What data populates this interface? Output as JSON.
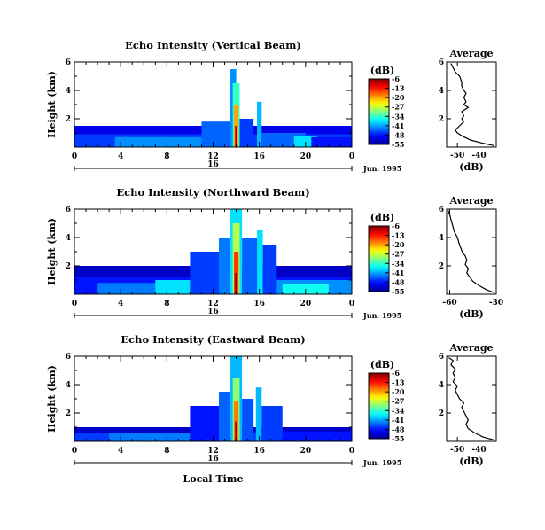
{
  "chart_data": [
    {
      "type": "heatmap",
      "title": "Echo Intensity (Vertical Beam)",
      "ylabel": "Height (km)",
      "xlabel": "",
      "x_ticks": [
        "0",
        "4",
        "8",
        "12",
        "16",
        "20",
        "0"
      ],
      "y_ticks": [
        "6",
        "4",
        "2"
      ],
      "xlim": [
        0,
        24
      ],
      "ylim": [
        0,
        6
      ],
      "date_label": "16",
      "date_suffix": "Jun. 1995",
      "colorbar": {
        "unit": "(dB)",
        "ticks": [
          "-6",
          "-13",
          "-20",
          "-27",
          "-34",
          "-41",
          "-48",
          "-55"
        ],
        "range": [
          -55,
          -6
        ]
      },
      "average": {
        "title": "Average",
        "xlabel": "(dB)",
        "x_ticks": [
          "-50",
          "-40"
        ],
        "y_ticks": [
          "6",
          "4",
          "2"
        ],
        "xlim": [
          -55,
          -32
        ],
        "profile": [
          [
            0.1,
            -33
          ],
          [
            0.3,
            -39
          ],
          [
            0.5,
            -44
          ],
          [
            0.8,
            -48
          ],
          [
            1.0,
            -50
          ],
          [
            1.2,
            -51
          ],
          [
            1.5,
            -49
          ],
          [
            1.8,
            -47
          ],
          [
            2.0,
            -48
          ],
          [
            2.2,
            -47
          ],
          [
            2.5,
            -48
          ],
          [
            2.8,
            -45
          ],
          [
            3.0,
            -47
          ],
          [
            3.2,
            -46
          ],
          [
            3.5,
            -47
          ],
          [
            3.8,
            -46
          ],
          [
            4.0,
            -47
          ],
          [
            4.3,
            -48
          ],
          [
            4.6,
            -48
          ],
          [
            5.0,
            -49
          ],
          [
            5.3,
            -51
          ],
          [
            5.6,
            -52
          ],
          [
            5.9,
            -53
          ]
        ]
      },
      "echo": [
        {
          "x0": 0.0,
          "x1": 24,
          "h": 1.5,
          "v": -50
        },
        {
          "x0": 0.0,
          "x1": 24,
          "h": 0.9,
          "v": -46
        },
        {
          "x0": 3.5,
          "x1": 11,
          "h": 0.7,
          "v": -42
        },
        {
          "x0": 11,
          "x1": 13.5,
          "h": 1.8,
          "v": -44
        },
        {
          "x0": 13.5,
          "x1": 14,
          "h": 5.5,
          "v": -42
        },
        {
          "x0": 13.7,
          "x1": 14.3,
          "h": 4.5,
          "v": -34
        },
        {
          "x0": 13.8,
          "x1": 14.2,
          "h": 3.0,
          "v": -20
        },
        {
          "x0": 13.9,
          "x1": 14.1,
          "h": 1.5,
          "v": -8
        },
        {
          "x0": 14.3,
          "x1": 15.5,
          "h": 2.0,
          "v": -46
        },
        {
          "x0": 15.8,
          "x1": 16.2,
          "h": 3.2,
          "v": -40
        },
        {
          "x0": 16.2,
          "x1": 20,
          "h": 1.0,
          "v": -44
        },
        {
          "x0": 19,
          "x1": 21,
          "h": 0.8,
          "v": -38
        },
        {
          "x0": 20.5,
          "x1": 24,
          "h": 0.7,
          "v": -48
        }
      ]
    },
    {
      "type": "heatmap",
      "title": "Echo Intensity (Northward Beam)",
      "ylabel": "Height (km)",
      "xlabel": "",
      "x_ticks": [
        "0",
        "4",
        "8",
        "12",
        "16",
        "20",
        "0"
      ],
      "y_ticks": [
        "6",
        "4",
        "2"
      ],
      "xlim": [
        0,
        24
      ],
      "ylim": [
        0,
        6
      ],
      "date_label": "16",
      "date_suffix": "Jun. 1995",
      "colorbar": {
        "unit": "(dB)",
        "ticks": [
          "-6",
          "-13",
          "-20",
          "-27",
          "-34",
          "-41",
          "-48",
          "-55"
        ],
        "range": [
          -55,
          -6
        ]
      },
      "average": {
        "title": "Average",
        "xlabel": "(dB)",
        "x_ticks": [
          "-60",
          "-30"
        ],
        "y_ticks": [
          "6",
          "4",
          "2"
        ],
        "xlim": [
          -62,
          -30
        ],
        "profile": [
          [
            0.1,
            -31
          ],
          [
            0.3,
            -36
          ],
          [
            0.6,
            -41
          ],
          [
            0.9,
            -45
          ],
          [
            1.2,
            -47
          ],
          [
            1.5,
            -49
          ],
          [
            1.8,
            -48
          ],
          [
            2.1,
            -50
          ],
          [
            2.4,
            -49
          ],
          [
            2.7,
            -50
          ],
          [
            3.0,
            -52
          ],
          [
            3.3,
            -53
          ],
          [
            3.6,
            -54
          ],
          [
            4.0,
            -55
          ],
          [
            4.4,
            -57
          ],
          [
            4.8,
            -58
          ],
          [
            5.2,
            -59
          ],
          [
            5.6,
            -60
          ],
          [
            5.9,
            -61
          ]
        ]
      },
      "echo": [
        {
          "x0": 0.0,
          "x1": 24,
          "h": 2.0,
          "v": -52
        },
        {
          "x0": 0.0,
          "x1": 24,
          "h": 1.2,
          "v": -48
        },
        {
          "x0": 2,
          "x1": 11,
          "h": 0.8,
          "v": -43
        },
        {
          "x0": 7,
          "x1": 11,
          "h": 1.0,
          "v": -38
        },
        {
          "x0": 10,
          "x1": 13,
          "h": 3.0,
          "v": -46
        },
        {
          "x0": 12.5,
          "x1": 14,
          "h": 4.0,
          "v": -43
        },
        {
          "x0": 13.5,
          "x1": 14.5,
          "h": 6.0,
          "v": -38
        },
        {
          "x0": 13.7,
          "x1": 14.3,
          "h": 5.0,
          "v": -28
        },
        {
          "x0": 13.8,
          "x1": 14.2,
          "h": 3.0,
          "v": -15
        },
        {
          "x0": 13.9,
          "x1": 14.1,
          "h": 1.5,
          "v": -6
        },
        {
          "x0": 14.5,
          "x1": 16,
          "h": 4.0,
          "v": -44
        },
        {
          "x0": 15.8,
          "x1": 16.3,
          "h": 4.5,
          "v": -38
        },
        {
          "x0": 16.3,
          "x1": 17.5,
          "h": 3.5,
          "v": -46
        },
        {
          "x0": 17.5,
          "x1": 24,
          "h": 1.0,
          "v": -42
        },
        {
          "x0": 18,
          "x1": 22,
          "h": 0.7,
          "v": -36
        }
      ]
    },
    {
      "type": "heatmap",
      "title": "Echo Intensity (Eastward Beam)",
      "ylabel": "Height (km)",
      "xlabel": "Local Time",
      "x_ticks": [
        "0",
        "4",
        "8",
        "12",
        "16",
        "20",
        "0"
      ],
      "y_ticks": [
        "6",
        "4",
        "2"
      ],
      "xlim": [
        0,
        24
      ],
      "ylim": [
        0,
        6
      ],
      "date_label": "16",
      "date_suffix": "Jun. 1995",
      "colorbar": {
        "unit": "(dB)",
        "ticks": [
          "-6",
          "-13",
          "-20",
          "-27",
          "-34",
          "-41",
          "-48",
          "-55"
        ],
        "range": [
          -55,
          -6
        ]
      },
      "average": {
        "title": "Average",
        "xlabel": "(dB)",
        "x_ticks": [
          "-50",
          "-40"
        ],
        "y_ticks": [
          "6",
          "4",
          "2"
        ],
        "xlim": [
          -55,
          -32
        ],
        "profile": [
          [
            0.1,
            -33
          ],
          [
            0.3,
            -38
          ],
          [
            0.6,
            -42
          ],
          [
            0.9,
            -45
          ],
          [
            1.2,
            -46
          ],
          [
            1.5,
            -45
          ],
          [
            1.8,
            -46
          ],
          [
            2.1,
            -47
          ],
          [
            2.4,
            -48
          ],
          [
            2.7,
            -47
          ],
          [
            3.0,
            -49
          ],
          [
            3.3,
            -50
          ],
          [
            3.6,
            -51
          ],
          [
            3.9,
            -50
          ],
          [
            4.2,
            -52
          ],
          [
            4.5,
            -51
          ],
          [
            4.8,
            -52
          ],
          [
            5.1,
            -51
          ],
          [
            5.4,
            -53
          ],
          [
            5.7,
            -52
          ],
          [
            5.9,
            -54
          ]
        ]
      },
      "echo": [
        {
          "x0": 0.0,
          "x1": 24,
          "h": 1.0,
          "v": -52
        },
        {
          "x0": 0.0,
          "x1": 24,
          "h": 0.6,
          "v": -46
        },
        {
          "x0": 3,
          "x1": 11,
          "h": 0.6,
          "v": -43
        },
        {
          "x0": 10,
          "x1": 13,
          "h": 2.5,
          "v": -48
        },
        {
          "x0": 12.5,
          "x1": 13.5,
          "h": 3.5,
          "v": -44
        },
        {
          "x0": 13.5,
          "x1": 14.5,
          "h": 6.0,
          "v": -40
        },
        {
          "x0": 13.7,
          "x1": 14.3,
          "h": 4.5,
          "v": -30
        },
        {
          "x0": 13.8,
          "x1": 14.2,
          "h": 2.8,
          "v": -18
        },
        {
          "x0": 13.9,
          "x1": 14.1,
          "h": 1.4,
          "v": -8
        },
        {
          "x0": 14.5,
          "x1": 15.5,
          "h": 3.0,
          "v": -45
        },
        {
          "x0": 15.7,
          "x1": 16.2,
          "h": 3.8,
          "v": -40
        },
        {
          "x0": 16.2,
          "x1": 18,
          "h": 2.5,
          "v": -46
        },
        {
          "x0": 18,
          "x1": 24,
          "h": 0.7,
          "v": -48
        }
      ]
    }
  ]
}
